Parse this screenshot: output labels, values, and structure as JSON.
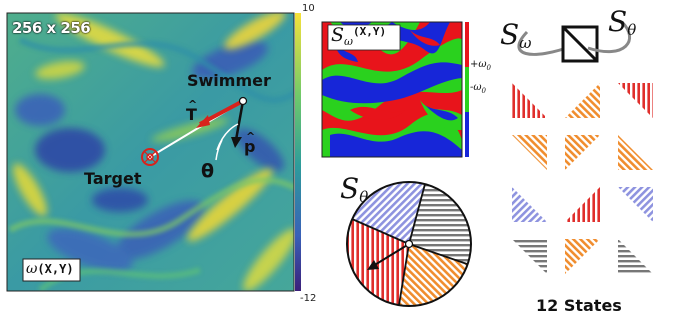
{
  "vorticity_panel": {
    "resolution_label": "256 x 256",
    "field_label_symbol": "ω",
    "field_label_args": "(X,Y)",
    "colorbar_max": "10",
    "colorbar_min": "-12",
    "swimmer_label": "Swimmer",
    "target_label": "Target",
    "tangent_label": "T",
    "orientation_label": "p",
    "angle_label": "θ"
  },
  "classified_panel": {
    "label_symbol": "S",
    "label_subscript": "ω",
    "label_args": "(X,Y)",
    "legend_plus": "+ω",
    "legend_plus_sub": "0",
    "legend_minus": "-ω",
    "legend_minus_sub": "0",
    "colors": {
      "positive": "#e8141b",
      "neutral": "#2ad11e",
      "negative": "#1726d8"
    }
  },
  "angle_sector_panel": {
    "label_symbol": "S",
    "label_subscript": "θ",
    "sector_colors": [
      "#c7c9ee",
      "#b8b8b8",
      "#f7a35c",
      "#e23a37"
    ]
  },
  "state_product": {
    "left_symbol": "S",
    "left_subscript": "ω",
    "right_symbol": "S",
    "right_subscript": "θ"
  },
  "states_grid": {
    "caption": "12 States",
    "rows": [
      [
        "red",
        "orange",
        "red"
      ],
      [
        "orange",
        "orange",
        "orange"
      ],
      [
        "blue",
        "red",
        "blue"
      ],
      [
        "gray",
        "orange",
        "gray"
      ]
    ],
    "palette": {
      "red": "#e23a37",
      "orange": "#f39a3c",
      "blue": "#9aa0e6",
      "gray": "#7a7a7a"
    }
  }
}
